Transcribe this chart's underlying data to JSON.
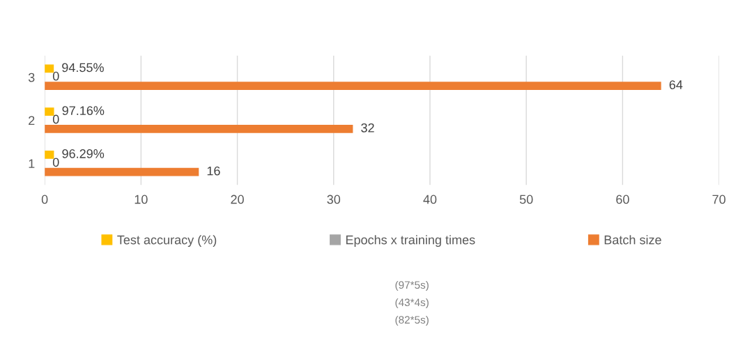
{
  "chart_data": {
    "type": "bar",
    "orientation": "horizontal",
    "categories": [
      "3",
      "2",
      "1"
    ],
    "series": [
      {
        "name": "Test accuracy (%)",
        "color": "#ffc000",
        "values": [
          0.9455,
          0.9716,
          0.9629
        ],
        "value_labels": [
          "94.55%",
          "97.16%",
          "96.29%"
        ]
      },
      {
        "name": "Epochs x training times",
        "color": "#a5a5a5",
        "values": [
          0,
          0,
          0
        ],
        "value_labels": [
          "0",
          "0",
          "0"
        ]
      },
      {
        "name": "Batch size",
        "color": "#ed7d31",
        "values": [
          64,
          32,
          16
        ],
        "value_labels": [
          "64",
          "32",
          "16"
        ]
      }
    ],
    "xlim": [
      0,
      70
    ],
    "xticks": [
      0,
      10,
      20,
      30,
      40,
      50,
      60,
      70
    ],
    "grid": "x",
    "legend": "bottom",
    "annotations": [
      "(97*5s)",
      "(43*4s)",
      "(82*5s)"
    ]
  }
}
